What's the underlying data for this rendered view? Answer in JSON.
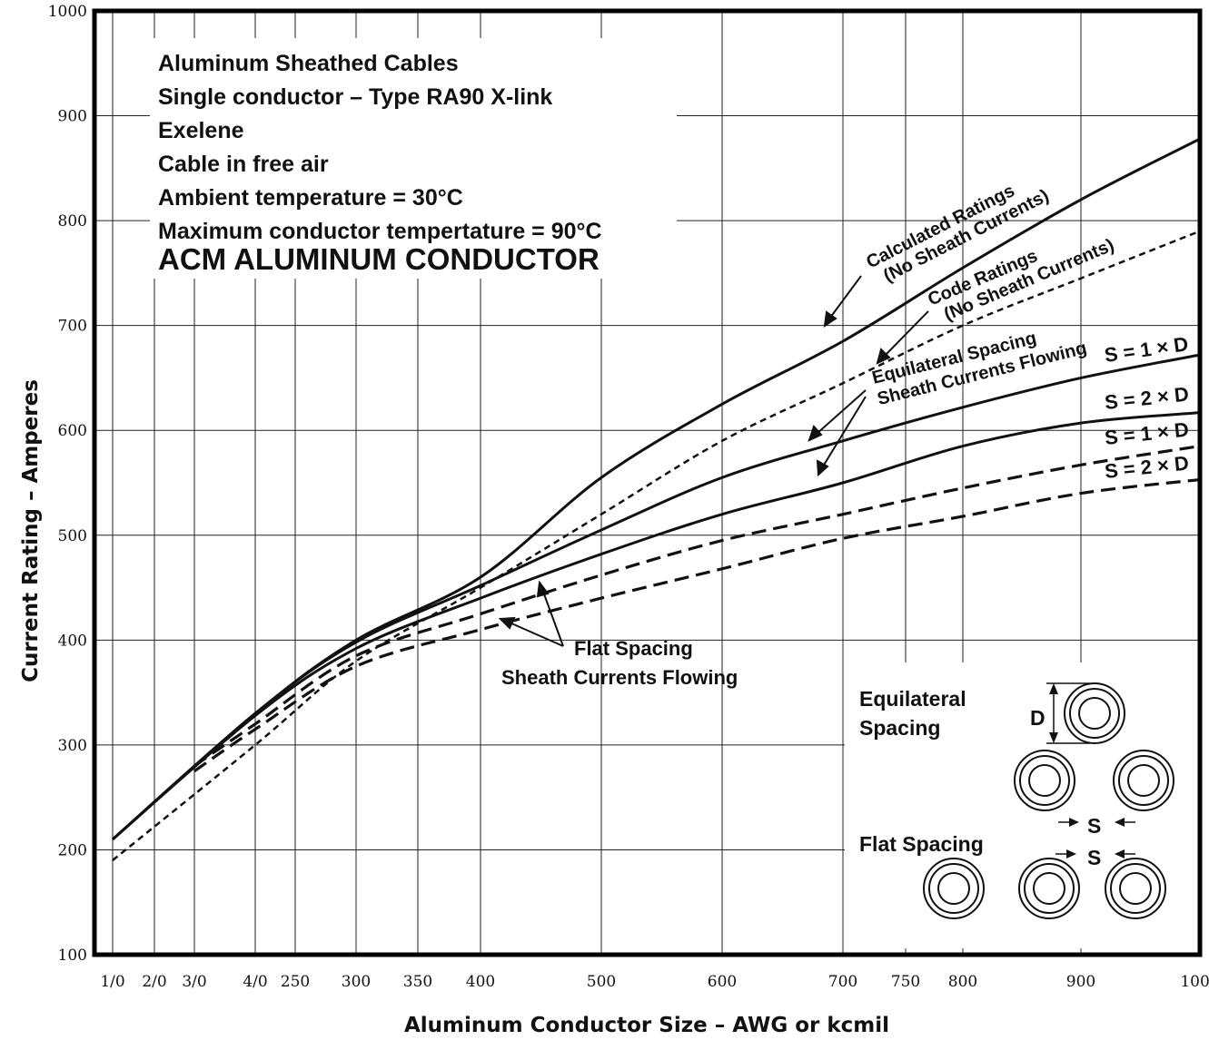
{
  "title_lines": [
    "Aluminum Sheathed Cables",
    "Single conductor – Type RA90 X-link",
    "Exelene",
    "Cable in free air",
    "Ambient temperature = 30°C",
    "Maximum conductor tempertature = 90°C"
  ],
  "title_big": "ACM ALUMINUM CONDUCTOR",
  "chart_data": {
    "type": "line",
    "xlabel": "Aluminum Conductor Size – AWG or kcmil",
    "ylabel": "Current Rating – Amperes",
    "ylim": [
      100,
      1000
    ],
    "y_ticks": [
      "1000",
      "900",
      "800",
      "700",
      "600",
      "500",
      "400",
      "300",
      "200",
      "100"
    ],
    "x_ticks": [
      "1/0",
      "2/0",
      "3/0",
      "4/0",
      "250",
      "300",
      "350",
      "400",
      "500",
      "600",
      "700",
      "750",
      "800",
      "900",
      "1000"
    ],
    "grid": true,
    "series": [
      {
        "style": "solid",
        "x": [
          "1/0",
          "4/0",
          "300",
          "400",
          "500",
          "600",
          "700",
          "800",
          "900",
          "1000"
        ],
        "y": [
          210,
          330,
          400,
          460,
          555,
          625,
          685,
          755,
          820,
          878
        ]
      },
      {
        "style": "dotted",
        "x": [
          "1/0",
          "4/0",
          "300",
          "400",
          "500",
          "600",
          "700",
          "800",
          "900",
          "1000"
        ],
        "y": [
          190,
          300,
          380,
          450,
          520,
          590,
          645,
          700,
          745,
          790
        ]
      },
      {
        "style": "solid",
        "x": [
          "1/0",
          "4/0",
          "300",
          "400",
          "500",
          "600",
          "700",
          "800",
          "900",
          "1000"
        ],
        "y": [
          210,
          330,
          398,
          452,
          505,
          555,
          590,
          622,
          650,
          672
        ]
      },
      {
        "style": "solid",
        "x": [
          "1/0",
          "4/0",
          "300",
          "400",
          "500",
          "600",
          "700",
          "800",
          "900",
          "1000"
        ],
        "y": [
          210,
          328,
          392,
          440,
          482,
          520,
          550,
          585,
          607,
          617
        ]
      },
      {
        "style": "dashed",
        "x": [
          "3/0",
          "4/0",
          "300",
          "400",
          "500",
          "600",
          "700",
          "800",
          "900",
          "1000"
        ],
        "y": [
          280,
          320,
          385,
          425,
          462,
          495,
          520,
          545,
          567,
          585
        ]
      },
      {
        "style": "dashed",
        "x": [
          "3/0",
          "4/0",
          "300",
          "400",
          "500",
          "600",
          "700",
          "800",
          "900",
          "1000"
        ],
        "y": [
          275,
          315,
          375,
          410,
          440,
          468,
          497,
          518,
          540,
          553
        ]
      }
    ]
  },
  "annotations": {
    "calc_1": "Calculated Ratings",
    "calc_2": "(No Sheath Currents)",
    "code_1": "Code Ratings",
    "code_2": "(No Sheath Currents)",
    "equi_1": "Equilateral Spacing",
    "equi_2": "Sheath Currents Flowing",
    "s1d_a": "S = 1 × D",
    "s2d_a": "S = 2 × D",
    "s1d_b": "S = 1 × D",
    "s2d_b": "S = 2 × D",
    "flat_1": "Flat Spacing",
    "flat_2": "Sheath Currents Flowing"
  },
  "legend": {
    "equilateral_1": "Equilateral",
    "equilateral_2": "Spacing",
    "flat": "Flat Spacing",
    "d_label": "D",
    "s_label_1": "S",
    "s_label_2": "S"
  }
}
